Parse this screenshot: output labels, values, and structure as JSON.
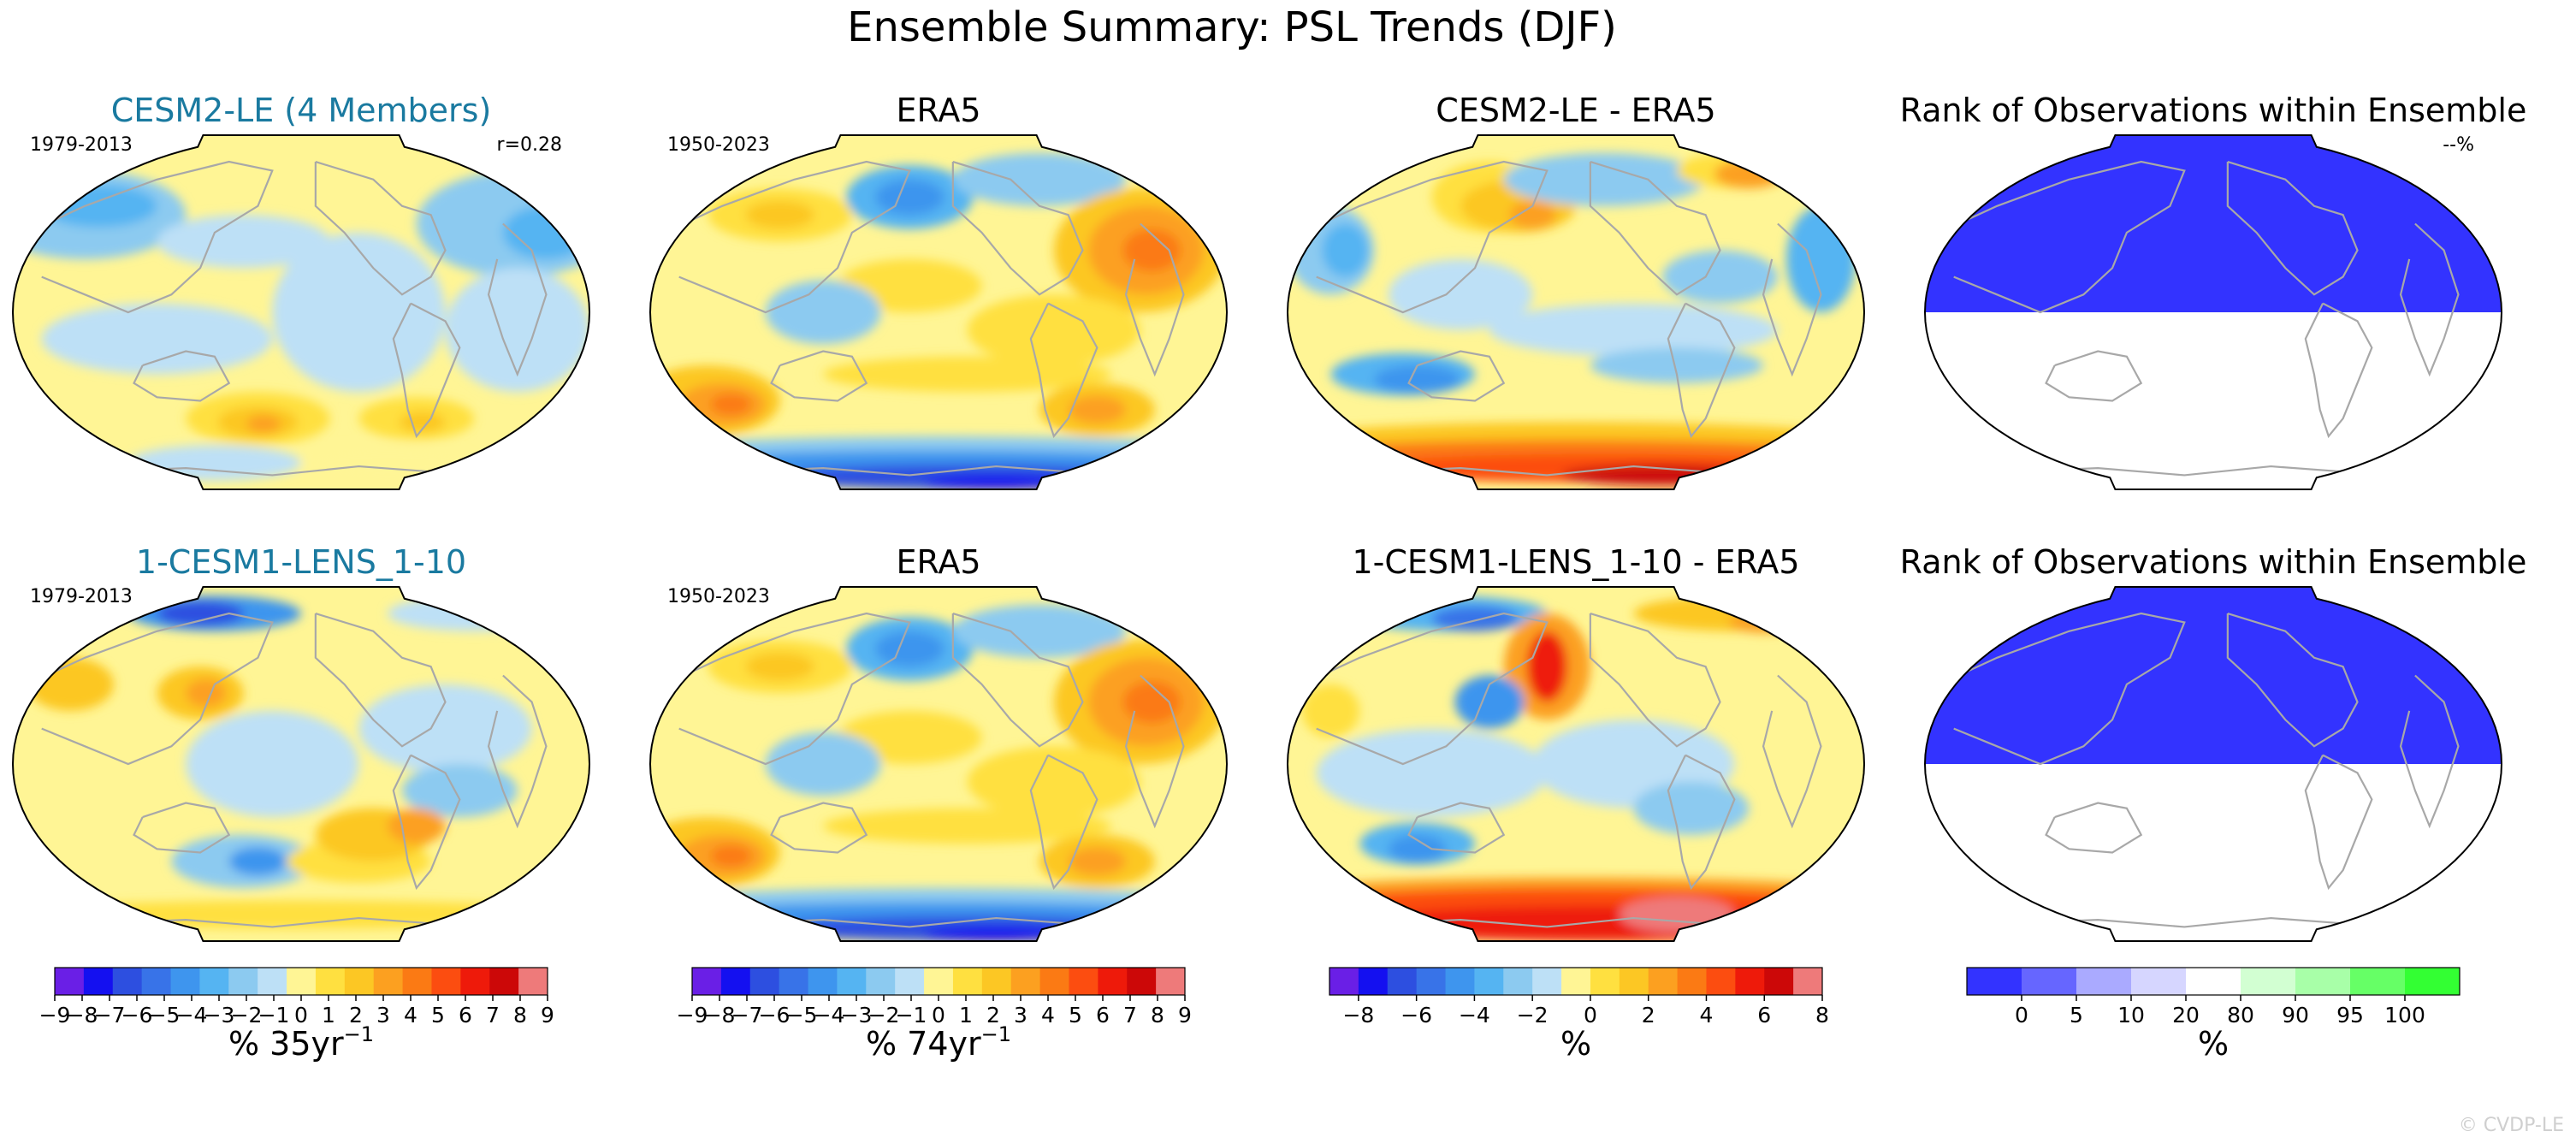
{
  "figure": {
    "title": "Ensemble Summary: PSL Trends (DJF)",
    "watermark": "© CVDP-LE"
  },
  "chart_data": [
    {
      "type": "heatmap",
      "id": "r1c1",
      "title": "CESM2-LE (4 Members)",
      "title_color": "#1a7aa0",
      "left_label": "1979-2013",
      "right_label": "r=0.28",
      "field": "ens1",
      "colorbar": "trend35"
    },
    {
      "type": "heatmap",
      "id": "r1c2",
      "title": "ERA5",
      "title_color": "#000000",
      "left_label": "1950-2023",
      "right_label": "",
      "field": "obs",
      "colorbar": "trend74"
    },
    {
      "type": "heatmap",
      "id": "r1c3",
      "title": "CESM2-LE - ERA5",
      "title_color": "#000000",
      "left_label": "",
      "right_label": "",
      "field": "diff1",
      "colorbar": "diff"
    },
    {
      "type": "heatmap",
      "id": "r1c4",
      "title": "Rank of Observations within Ensemble",
      "title_color": "#000000",
      "left_label": "",
      "right_label": "--%",
      "field": "rank",
      "colorbar": "rank"
    },
    {
      "type": "heatmap",
      "id": "r2c1",
      "title": "1-CESM1-LENS_1-10",
      "title_color": "#1a7aa0",
      "left_label": "1979-2013",
      "right_label": "",
      "field": "ens2",
      "colorbar": "trend35"
    },
    {
      "type": "heatmap",
      "id": "r2c2",
      "title": "ERA5",
      "title_color": "#000000",
      "left_label": "1950-2023",
      "right_label": "",
      "field": "obs",
      "colorbar": "trend74"
    },
    {
      "type": "heatmap",
      "id": "r2c3",
      "title": "1-CESM1-LENS_1-10 - ERA5",
      "title_color": "#000000",
      "left_label": "",
      "right_label": "",
      "field": "diff2",
      "colorbar": "diff"
    },
    {
      "type": "heatmap",
      "id": "r2c4",
      "title": "Rank of Observations within Ensemble",
      "title_color": "#000000",
      "left_label": "",
      "right_label": "",
      "field": "rank",
      "colorbar": "rank"
    }
  ],
  "colorbars": {
    "trend35": {
      "label_main": "% 35yr",
      "label_sup": "−1",
      "colors": [
        "#6a1fe6",
        "#1410f0",
        "#2d4fe0",
        "#3873e8",
        "#3e95ee",
        "#55b4f2",
        "#8ccaf0",
        "#bde0f6",
        "#fff595",
        "#ffe040",
        "#fcc724",
        "#fca020",
        "#fb7a14",
        "#fc4d10",
        "#ee1a0a",
        "#cc0808",
        "#ee7a7a"
      ],
      "ticks": [
        "−9",
        "−8",
        "−7",
        "−6",
        "−5",
        "−4",
        "−3",
        "−2",
        "−1",
        "0",
        "1",
        "2",
        "3",
        "4",
        "5",
        "6",
        "7",
        "8",
        "9"
      ]
    },
    "trend74": {
      "label_main": "% 74yr",
      "label_sup": "−1",
      "colors": [
        "#6a1fe6",
        "#1410f0",
        "#2d4fe0",
        "#3873e8",
        "#3e95ee",
        "#55b4f2",
        "#8ccaf0",
        "#bde0f6",
        "#fff595",
        "#ffe040",
        "#fcc724",
        "#fca020",
        "#fb7a14",
        "#fc4d10",
        "#ee1a0a",
        "#cc0808",
        "#ee7a7a"
      ],
      "ticks": [
        "−9",
        "−8",
        "−7",
        "−6",
        "−5",
        "−4",
        "−3",
        "−2",
        "−1",
        "0",
        "1",
        "2",
        "3",
        "4",
        "5",
        "6",
        "7",
        "8",
        "9"
      ]
    },
    "diff": {
      "label_main": "%",
      "label_sup": "",
      "colors": [
        "#6a1fe6",
        "#1410f0",
        "#2d4fe0",
        "#3873e8",
        "#3e95ee",
        "#55b4f2",
        "#8ccaf0",
        "#bde0f6",
        "#fff595",
        "#ffe040",
        "#fcc724",
        "#fca020",
        "#fb7a14",
        "#fc4d10",
        "#ee1a0a",
        "#cc0808",
        "#ee7a7a"
      ],
      "ticks": [
        "−8",
        "−6",
        "−4",
        "−2",
        "0",
        "2",
        "4",
        "6",
        "8"
      ],
      "tick_positions": [
        1,
        3,
        5,
        7,
        9,
        11,
        13,
        15,
        17
      ]
    },
    "rank": {
      "label_main": "%",
      "label_sup": "",
      "colors": [
        "#3333ff",
        "#6666ff",
        "#aaaaff",
        "#d6d6ff",
        "#ffffff",
        "#d2ffd2",
        "#a8ffa8",
        "#66ff66",
        "#33ff33"
      ],
      "ticks": [
        "0",
        "5",
        "10",
        "20",
        "80",
        "90",
        "95",
        "100"
      ]
    }
  }
}
